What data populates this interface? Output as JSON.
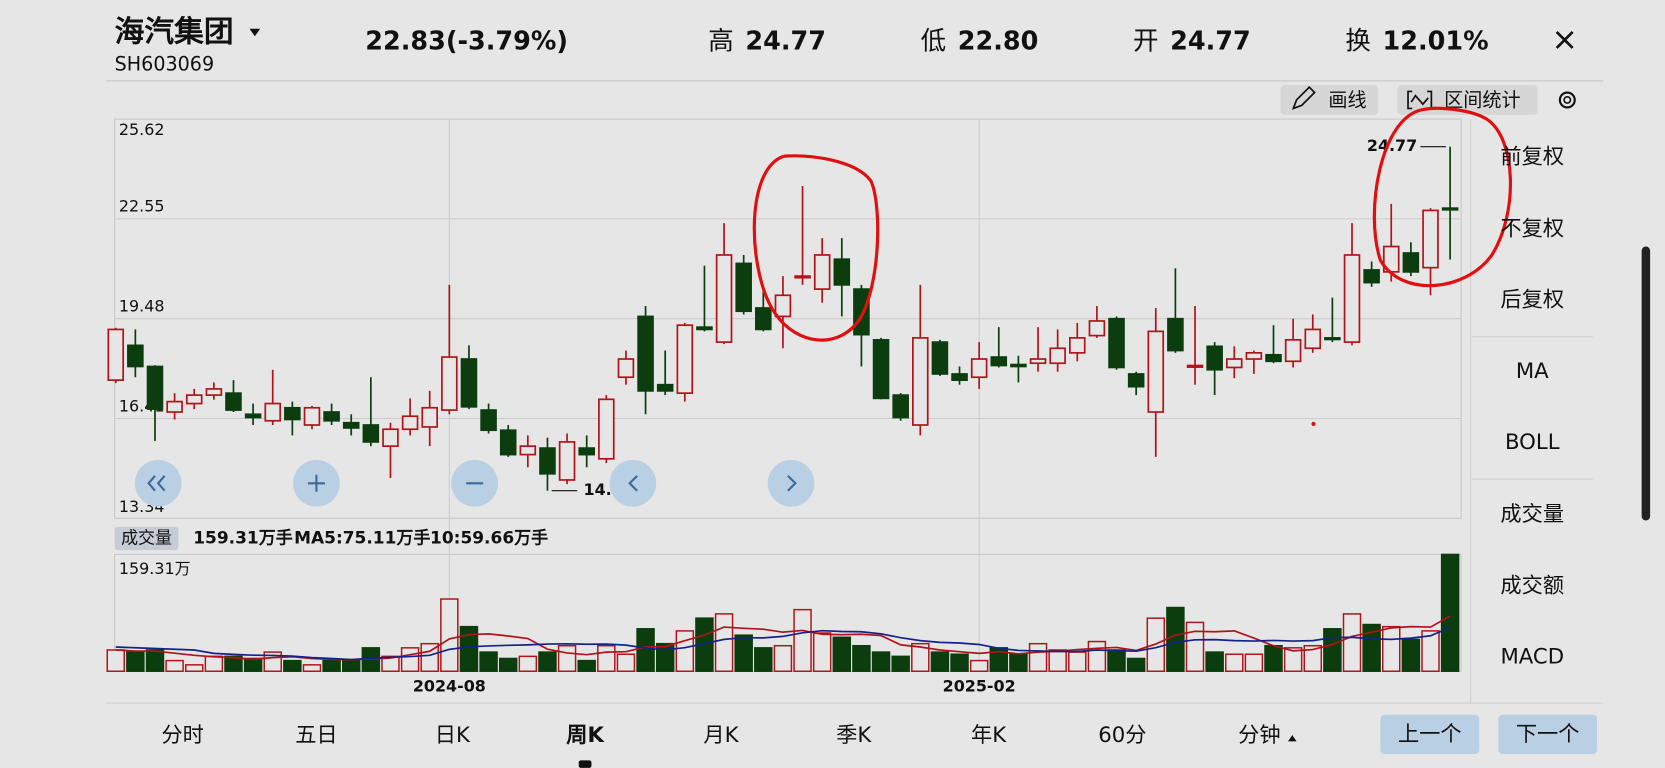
{
  "header": {
    "name": "海汽集团",
    "code": "SH603069",
    "price": "22.83(-3.79%)",
    "price_color": "#0b4a12",
    "stats": [
      {
        "label": "高",
        "value": "24.77",
        "color": "#8b0000"
      },
      {
        "label": "低",
        "value": "22.80",
        "color": "#0b4a12"
      },
      {
        "label": "开",
        "value": "24.77",
        "color": "#8b0000"
      },
      {
        "label": "换",
        "value": "12.01%",
        "color": "#111111"
      }
    ]
  },
  "toolbar": {
    "draw": "画线",
    "stats": "区间统计"
  },
  "side_menu": [
    {
      "label": "前复权",
      "selected": true
    },
    {
      "label": "不复权",
      "selected": false
    },
    {
      "label": "后复权",
      "selected": false
    },
    {
      "label": "MA",
      "selected": false
    },
    {
      "label": "BOLL",
      "selected": false
    },
    {
      "label": "成交量",
      "selected": true
    },
    {
      "label": "成交额",
      "selected": false
    },
    {
      "label": "MACD",
      "selected": false
    }
  ],
  "period_tabs": [
    "分时",
    "五日",
    "日K",
    "周K",
    "月K",
    "季K",
    "年K",
    "60分",
    "分钟"
  ],
  "selected_tab": "周K",
  "nav_buttons": [
    "上一个",
    "下一个"
  ],
  "chart_data": [
    {
      "type": "candlestick",
      "up_color": "#b0141a",
      "down_color": "#0b3d0f",
      "grid": true,
      "x": [
        null,
        null,
        null,
        null,
        null,
        null,
        null,
        null,
        null,
        null,
        null,
        null,
        null,
        null,
        null,
        null,
        null,
        "2024-08",
        null,
        null,
        null,
        null,
        null,
        null,
        null,
        null,
        null,
        null,
        null,
        null,
        null,
        null,
        null,
        null,
        null,
        null,
        null,
        null,
        null,
        null,
        null,
        null,
        null,
        null,
        "2025-02",
        null,
        null,
        null,
        null,
        null,
        null,
        null,
        null,
        null,
        null,
        null,
        null,
        null,
        null,
        null,
        null,
        null,
        null,
        null,
        null,
        null,
        null,
        null,
        null
      ],
      "open": [
        17.59,
        18.66,
        18.01,
        16.61,
        16.87,
        17.13,
        17.19,
        16.54,
        16.34,
        16.74,
        16.21,
        16.61,
        16.28,
        16.21,
        15.56,
        16.08,
        16.15,
        16.67,
        18.24,
        16.67,
        16.05,
        15.3,
        15.5,
        14.52,
        15.5,
        15.17,
        17.68,
        19.55,
        17.45,
        17.19,
        19.22,
        18.76,
        21.18,
        19.81,
        19.55,
        20.75,
        20.39,
        21.31,
        20.39,
        18.83,
        17.13,
        16.21,
        18.76,
        17.78,
        17.68,
        18.3,
        18.07,
        18.11,
        18.11,
        18.43,
        18.96,
        19.48,
        17.78,
        16.61,
        19.48,
        18.01,
        18.63,
        17.98,
        18.24,
        18.37,
        18.17,
        18.57,
        18.89,
        18.76,
        20.98,
        20.92,
        21.5,
        21.05,
        22.88
      ],
      "high": [
        19.2,
        19.15,
        18.05,
        17.19,
        17.32,
        17.52,
        17.59,
        16.87,
        17.91,
        16.93,
        16.8,
        16.87,
        16.54,
        17.68,
        16.28,
        17.03,
        17.26,
        20.52,
        18.66,
        16.87,
        16.21,
        15.89,
        15.82,
        15.95,
        15.89,
        17.13,
        18.5,
        19.87,
        18.5,
        19.35,
        21.11,
        22.42,
        21.44,
        20.46,
        20.79,
        23.56,
        21.96,
        21.96,
        20.52,
        18.89,
        17.19,
        20.52,
        18.83,
        18.01,
        18.76,
        19.22,
        18.34,
        19.22,
        19.15,
        19.35,
        19.87,
        19.55,
        17.85,
        19.81,
        21.03,
        19.87,
        18.76,
        18.63,
        18.5,
        19.28,
        19.48,
        19.61,
        20.13,
        22.42,
        21.24,
        23.01,
        21.83,
        22.88,
        24.77
      ],
      "low": [
        17.5,
        17.68,
        15.72,
        16.38,
        16.7,
        16.99,
        16.61,
        16.21,
        16.21,
        15.89,
        16.08,
        16.21,
        15.89,
        15.56,
        14.58,
        15.89,
        15.56,
        16.54,
        16.7,
        15.95,
        15.23,
        14.91,
        14.19,
        14.39,
        14.91,
        15.04,
        17.45,
        16.54,
        17.13,
        16.93,
        19.09,
        18.7,
        19.61,
        19.09,
        18.57,
        20.52,
        19.97,
        19.55,
        18.01,
        17.0,
        16.34,
        15.89,
        17.72,
        17.45,
        17.32,
        17.98,
        17.52,
        17.85,
        17.85,
        18.17,
        18.89,
        17.91,
        17.13,
        15.23,
        18.43,
        17.45,
        17.13,
        17.65,
        17.78,
        18.11,
        17.98,
        18.43,
        18.76,
        18.66,
        20.46,
        20.62,
        20.79,
        20.2,
        21.3
      ],
      "close": [
        19.15,
        18.01,
        16.7,
        16.93,
        17.13,
        17.32,
        16.67,
        16.44,
        16.87,
        16.38,
        16.74,
        16.34,
        16.12,
        15.69,
        16.08,
        16.48,
        16.74,
        18.3,
        16.77,
        16.05,
        15.3,
        15.56,
        14.71,
        15.69,
        15.3,
        17.0,
        18.24,
        17.26,
        17.26,
        19.28,
        19.15,
        21.44,
        19.71,
        19.15,
        20.2,
        20.79,
        21.44,
        20.52,
        18.99,
        17.03,
        16.44,
        18.89,
        17.78,
        17.59,
        18.24,
        18.04,
        18.01,
        18.24,
        18.57,
        18.89,
        19.41,
        17.98,
        17.39,
        19.09,
        18.5,
        18.04,
        17.91,
        18.24,
        18.43,
        18.17,
        18.83,
        19.15,
        18.86,
        21.44,
        20.59,
        21.7,
        20.92,
        22.81,
        22.83
      ],
      "ylim": [
        13.34,
        25.62
      ],
      "yticks": [
        13.34,
        16.41,
        19.48,
        22.55,
        25.62
      ],
      "max_label": "24.77",
      "min_label": "14.19"
    },
    {
      "type": "volume",
      "badge": "成交量",
      "current_label": "159.31万手",
      "values": [
        29.0,
        26.1,
        29.0,
        14.5,
        8.7,
        20.3,
        20.3,
        17.4,
        26.1,
        14.5,
        8.7,
        14.5,
        14.5,
        31.9,
        20.3,
        31.9,
        37.6,
        98.5,
        60.8,
        26.1,
        17.4,
        20.3,
        26.1,
        34.8,
        14.5,
        34.8,
        23.2,
        57.9,
        37.6,
        55.0,
        72.4,
        78.2,
        49.2,
        31.9,
        34.8,
        84.0,
        52.1,
        46.3,
        34.8,
        26.1,
        20.3,
        37.6,
        26.1,
        23.2,
        14.5,
        31.9,
        23.2,
        37.6,
        29.0,
        26.1,
        40.5,
        29.0,
        17.4,
        72.4,
        86.9,
        66.6,
        26.1,
        23.2,
        23.2,
        34.8,
        31.9,
        34.8,
        57.9,
        78.2,
        63.7,
        60.8,
        43.4,
        55.0,
        159.31
      ],
      "lines": [
        {
          "label": "MA5:75.11万手",
          "color": "#b0141a",
          "values": [
            29.0,
            27.5,
            27.5,
            24.6,
            21.7,
            19.7,
            18.5,
            16.2,
            18.5,
            19.7,
            17.4,
            16.2,
            15.6,
            16.8,
            18.0,
            22.6,
            27.2,
            44.0,
            49.8,
            51.0,
            48.1,
            44.6,
            30.1,
            24.9,
            22.6,
            26.1,
            26.6,
            33.0,
            33.6,
            41.7,
            49.2,
            60.2,
            58.5,
            57.3,
            53.3,
            55.6,
            50.4,
            49.8,
            50.4,
            48.7,
            35.9,
            33.0,
            29.0,
            26.6,
            24.3,
            26.6,
            23.7,
            26.1,
            27.2,
            29.5,
            31.3,
            32.4,
            28.4,
            37.1,
            49.2,
            54.4,
            53.9,
            55.0,
            45.2,
            34.8,
            27.8,
            29.5,
            36.5,
            47.5,
            53.3,
            59.1,
            60.8,
            60.2,
            75.11
          ]
        },
        {
          "label": "10:59.66万手",
          "color": "#14238a",
          "values": [
            33,
            32,
            31,
            30,
            29,
            24.4,
            23.0,
            21.9,
            21.6,
            20.7,
            18.6,
            17.4,
            15.9,
            17.7,
            18.9,
            20.0,
            21.7,
            29.8,
            33.3,
            34.5,
            35.4,
            35.9,
            37.1,
            37.4,
            36.8,
            37.1,
            35.6,
            31.6,
            29.3,
            32.2,
            37.7,
            43.4,
            45.8,
            45.5,
            47.5,
            52.4,
            55.3,
            54.2,
            53.9,
            51.0,
            45.8,
            41.7,
            39.4,
            38.5,
            36.5,
            31.3,
            28.4,
            27.6,
            26.9,
            26.9,
            29.0,
            28.1,
            27.3,
            32.2,
            39.4,
            42.9,
            43.2,
            41.7,
            41.2,
            42.0,
            41.1,
            41.7,
            45.8,
            46.4,
            44.1,
            43.5,
            45.2,
            48.4,
            59.66
          ]
        }
      ],
      "ylim": [
        0,
        159.31
      ],
      "yticks": [
        {
          "value": 159.31,
          "label": "159.31万"
        }
      ]
    }
  ]
}
